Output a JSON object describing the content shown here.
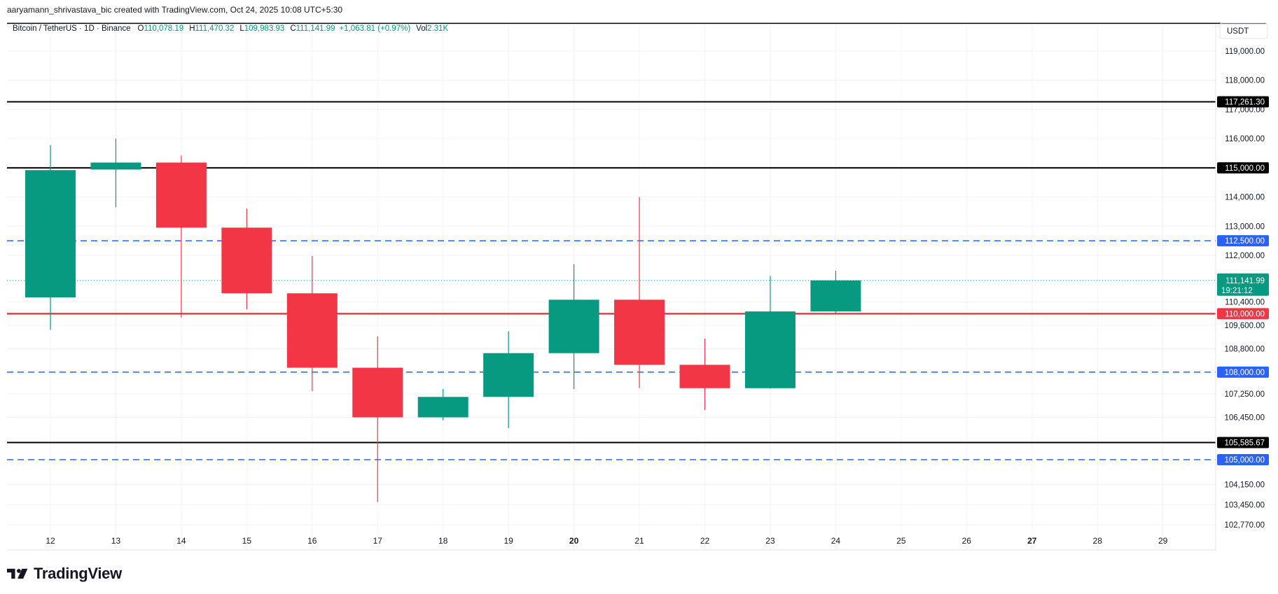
{
  "header": {
    "caption": "aaryamann_shrivastava_bic created with TradingView.com, Oct 24, 2025 10:08 UTC+5:30"
  },
  "legend": {
    "symbol": "Bitcoin / TetherUS · 1D · Binance",
    "open_label": "O",
    "open_value": "110,078.19",
    "high_label": "H",
    "high_value": "111,470.32",
    "low_label": "L",
    "low_value": "109,983.93",
    "close_label": "C",
    "close_value": "111,141.99",
    "change": "+1,063.81 (+0.97%)",
    "vol_label": "Vol",
    "vol_value": "2.31K"
  },
  "brand": {
    "name": "TradingView"
  },
  "colors": {
    "up": "#089981",
    "down": "#f23645",
    "support_dashed": "#2962ff",
    "level_line": "#000000",
    "red_level": "#f23645",
    "grid": "#f0f3fa",
    "axis_text": "#131722"
  },
  "chart_data": {
    "type": "candlestick",
    "currency": "USDT",
    "x_ticks": [
      {
        "label": "12",
        "bold": false
      },
      {
        "label": "13",
        "bold": false
      },
      {
        "label": "14",
        "bold": false
      },
      {
        "label": "15",
        "bold": false
      },
      {
        "label": "16",
        "bold": false
      },
      {
        "label": "17",
        "bold": false
      },
      {
        "label": "18",
        "bold": false
      },
      {
        "label": "19",
        "bold": false
      },
      {
        "label": "20",
        "bold": true
      },
      {
        "label": "21",
        "bold": false
      },
      {
        "label": "22",
        "bold": false
      },
      {
        "label": "23",
        "bold": false
      },
      {
        "label": "24",
        "bold": false
      },
      {
        "label": "25",
        "bold": false
      },
      {
        "label": "26",
        "bold": false
      },
      {
        "label": "27",
        "bold": true
      },
      {
        "label": "28",
        "bold": false
      },
      {
        "label": "29",
        "bold": false
      }
    ],
    "candles": [
      {
        "day": "12",
        "open": 110560,
        "high": 115780,
        "low": 109450,
        "close": 114920
      },
      {
        "day": "13",
        "open": 114940,
        "high": 116000,
        "low": 113650,
        "close": 115180
      },
      {
        "day": "14",
        "open": 115180,
        "high": 115420,
        "low": 109870,
        "close": 112950
      },
      {
        "day": "15",
        "open": 112950,
        "high": 113600,
        "low": 110150,
        "close": 110700
      },
      {
        "day": "16",
        "open": 110700,
        "high": 111980,
        "low": 107350,
        "close": 108150
      },
      {
        "day": "17",
        "open": 108150,
        "high": 109220,
        "low": 103550,
        "close": 106450
      },
      {
        "day": "18",
        "open": 106450,
        "high": 107420,
        "low": 106350,
        "close": 107150
      },
      {
        "day": "19",
        "open": 107150,
        "high": 109400,
        "low": 106080,
        "close": 108650
      },
      {
        "day": "20",
        "open": 108650,
        "high": 111700,
        "low": 107420,
        "close": 110480
      },
      {
        "day": "21",
        "open": 110480,
        "high": 114000,
        "low": 107450,
        "close": 108250
      },
      {
        "day": "22",
        "open": 108250,
        "high": 109150,
        "low": 106700,
        "close": 107450
      },
      {
        "day": "23",
        "open": 107450,
        "high": 111300,
        "low": 107430,
        "close": 110078.19
      },
      {
        "day": "24",
        "open": 110078.19,
        "high": 111470.32,
        "low": 109983.93,
        "close": 111141.99
      }
    ],
    "y_ticks": [
      {
        "label": "119,000.00",
        "value": 119000
      },
      {
        "label": "118,000.00",
        "value": 118000
      },
      {
        "label": "117,000.00",
        "value": 117000
      },
      {
        "label": "116,000.00",
        "value": 116000
      },
      {
        "label": "114,000.00",
        "value": 114000
      },
      {
        "label": "113,000.00",
        "value": 113000
      },
      {
        "label": "112,000.00",
        "value": 112000
      },
      {
        "label": "110,400.00",
        "value": 110400
      },
      {
        "label": "109,600.00",
        "value": 109600
      },
      {
        "label": "108,800.00",
        "value": 108800
      },
      {
        "label": "107,250.00",
        "value": 107250
      },
      {
        "label": "106,450.00",
        "value": 106450
      },
      {
        "label": "104,150.00",
        "value": 104150
      },
      {
        "label": "103,450.00",
        "value": 103450
      },
      {
        "label": "102,770.00",
        "value": 102770
      }
    ],
    "levels": [
      {
        "value": 117261.3,
        "label": "117,261.30",
        "style": "solid",
        "color": "#000000",
        "label_bg": "#000000"
      },
      {
        "value": 115000.0,
        "label": "115,000.00",
        "style": "solid",
        "color": "#000000",
        "label_bg": "#000000"
      },
      {
        "value": 112500.0,
        "label": "112,500.00",
        "style": "dashed",
        "color": "#2962ff",
        "label_bg": "#2962ff"
      },
      {
        "value": 110000.0,
        "label": "110,000.00",
        "style": "solid",
        "color": "#f23645",
        "label_bg": "#f23645"
      },
      {
        "value": 108000.0,
        "label": "108,000.00",
        "style": "dashed",
        "color": "#2962ff",
        "label_bg": "#2962ff"
      },
      {
        "value": 105585.67,
        "label": "105,585.67",
        "style": "solid",
        "color": "#000000",
        "label_bg": "#000000"
      },
      {
        "value": 105000.0,
        "label": "105,000.00",
        "style": "dashed",
        "color": "#2962ff",
        "label_bg": "#2962ff"
      }
    ],
    "last_price": {
      "value": 111141.99,
      "label": "111,141.99",
      "countdown": "19:21:12",
      "color": "#089981"
    },
    "top_boundary": {
      "value": 119950
    }
  }
}
